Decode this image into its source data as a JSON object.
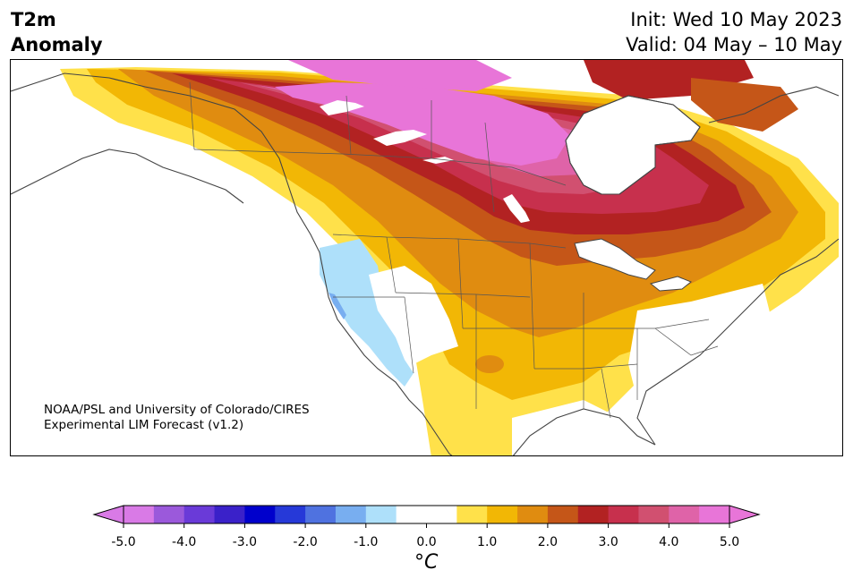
{
  "header": {
    "title_line1": "T2m",
    "title_line2": "Anomaly",
    "init": "Init: Wed 10 May 2023",
    "valid": "Valid: 04 May – 10 May"
  },
  "credit": {
    "line1": "NOAA/PSL and University of Colorado/CIRES",
    "line2": "Experimental LIM Forecast (v1.2)"
  },
  "colorbar": {
    "unit": "°C",
    "tick_labels": [
      "-5.0",
      "-4.0",
      "-3.0",
      "-2.0",
      "-1.0",
      "0.0",
      "1.0",
      "2.0",
      "3.0",
      "4.0",
      "5.0"
    ],
    "colors": [
      "#d97ae6",
      "#9b59db",
      "#6a3ad8",
      "#3a21c9",
      "#0000cc",
      "#2639d8",
      "#4f72e0",
      "#78aef0",
      "#aee0fa",
      "#ffffff",
      "#ffffff",
      "#ffe14a",
      "#f2b705",
      "#e08c10",
      "#c55618",
      "#b22222",
      "#c7304d",
      "#d15070",
      "#df63a8",
      "#e875d8"
    ]
  },
  "map": {
    "region": "North America",
    "colors": {
      "yellow": "#ffe14a",
      "gold": "#f2b705",
      "orange": "#e08c10",
      "dark_orange": "#c55618",
      "red": "#b22222",
      "crimson": "#c7304d",
      "rose": "#d15070",
      "pink": "#df63a8",
      "magenta": "#e875d8",
      "light_blue": "#aee0fa",
      "mid_blue": "#78aef0"
    }
  }
}
